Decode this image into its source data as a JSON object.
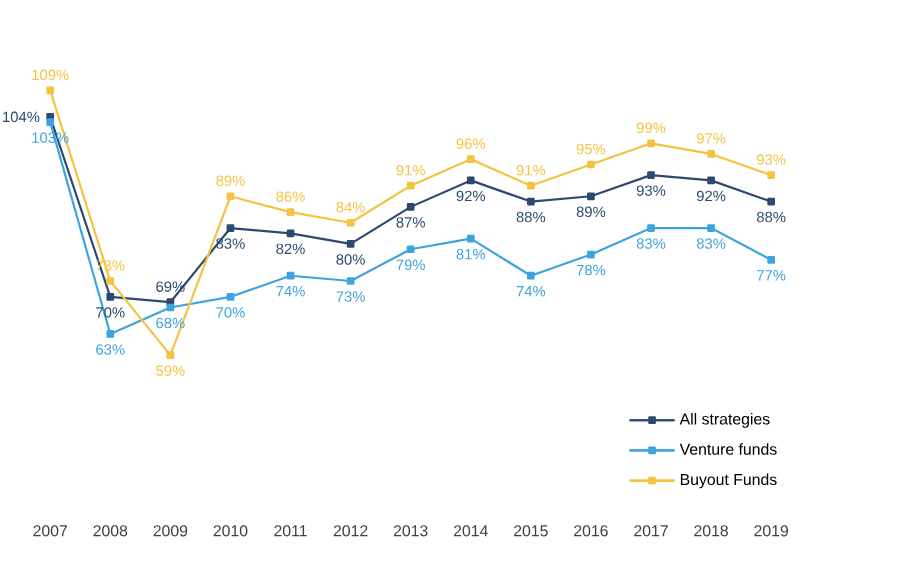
{
  "chart_data": {
    "type": "line",
    "categories": [
      "2007",
      "2008",
      "2009",
      "2010",
      "2011",
      "2012",
      "2013",
      "2014",
      "2015",
      "2016",
      "2017",
      "2018",
      "2019"
    ],
    "series": [
      {
        "name": "All strategies",
        "color": "#2d4a6e",
        "values": [
          104,
          70,
          69,
          83,
          82,
          80,
          87,
          92,
          88,
          89,
          93,
          92,
          88
        ],
        "value_labels": [
          "104%",
          "70%",
          "69%",
          "83%",
          "82%",
          "80%",
          "87%",
          "92%",
          "88%",
          "89%",
          "93%",
          "92%",
          "88%"
        ]
      },
      {
        "name": "Venture funds",
        "color": "#3fa3dc",
        "values": [
          103,
          63,
          68,
          70,
          74,
          73,
          79,
          81,
          74,
          78,
          83,
          83,
          77
        ],
        "value_labels": [
          "103%",
          "63%",
          "68%",
          "70%",
          "74%",
          "73%",
          "79%",
          "81%",
          "74%",
          "78%",
          "83%",
          "83%",
          "77%"
        ]
      },
      {
        "name": "Buyout Funds",
        "color": "#f5c342",
        "values": [
          109,
          73,
          59,
          89,
          86,
          84,
          91,
          96,
          91,
          95,
          99,
          97,
          93
        ],
        "value_labels": [
          "109%",
          "73%",
          "59%",
          "89%",
          "86%",
          "84%",
          "91%",
          "96%",
          "91%",
          "95%",
          "99%",
          "97%",
          "93%"
        ]
      }
    ],
    "marker": "square",
    "line_style": "solid",
    "legend": "bottom right"
  }
}
